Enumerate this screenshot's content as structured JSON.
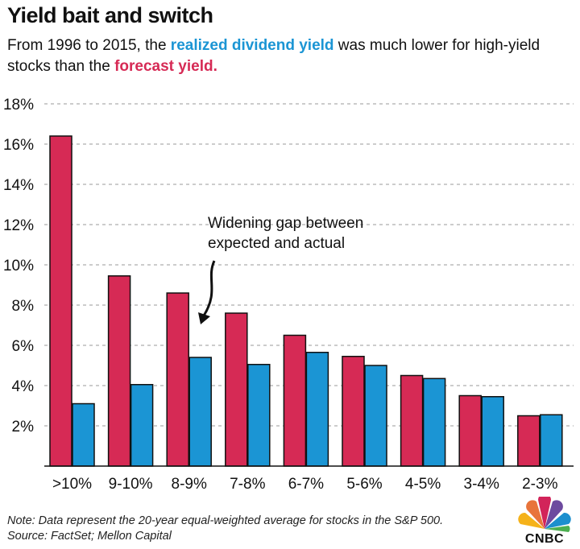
{
  "title": "Yield bait and switch",
  "subtitle": {
    "part1": "From 1996 to 2015, the ",
    "realized_label": "realized dividend yield",
    "part2": " was much lower for high-yield stocks than the ",
    "forecast_label": "forecast yield."
  },
  "colors": {
    "forecast": "#d62a55",
    "realized": "#1b95d4"
  },
  "chart_data": {
    "type": "bar",
    "categories": [
      ">10%",
      "9-10%",
      "8-9%",
      "7-8%",
      "6-7%",
      "5-6%",
      "4-5%",
      "3-4%",
      "2-3%"
    ],
    "series": [
      {
        "name": "Forecast yield",
        "values": [
          16.4,
          9.45,
          8.6,
          7.6,
          6.5,
          5.45,
          4.5,
          3.5,
          2.5
        ]
      },
      {
        "name": "Realized dividend yield",
        "values": [
          3.1,
          4.05,
          5.4,
          5.05,
          5.65,
          5.0,
          4.35,
          3.45,
          2.55
        ]
      }
    ],
    "ylim": [
      0,
      18
    ],
    "yticks": [
      2,
      4,
      6,
      8,
      10,
      12,
      14,
      16,
      18
    ],
    "ytick_labels": [
      "2%",
      "4%",
      "6%",
      "8%",
      "10%",
      "12%",
      "14%",
      "16%",
      "18%"
    ],
    "annotation": {
      "line1": "Widening gap between",
      "line2": "expected and actual"
    }
  },
  "note": {
    "line1": "Note: Data represent the 20-year equal-weighted average for stocks in the S&P 500.",
    "line2": "Source: FactSet; Mellon Capital"
  },
  "logo": {
    "text": "CNBC"
  }
}
